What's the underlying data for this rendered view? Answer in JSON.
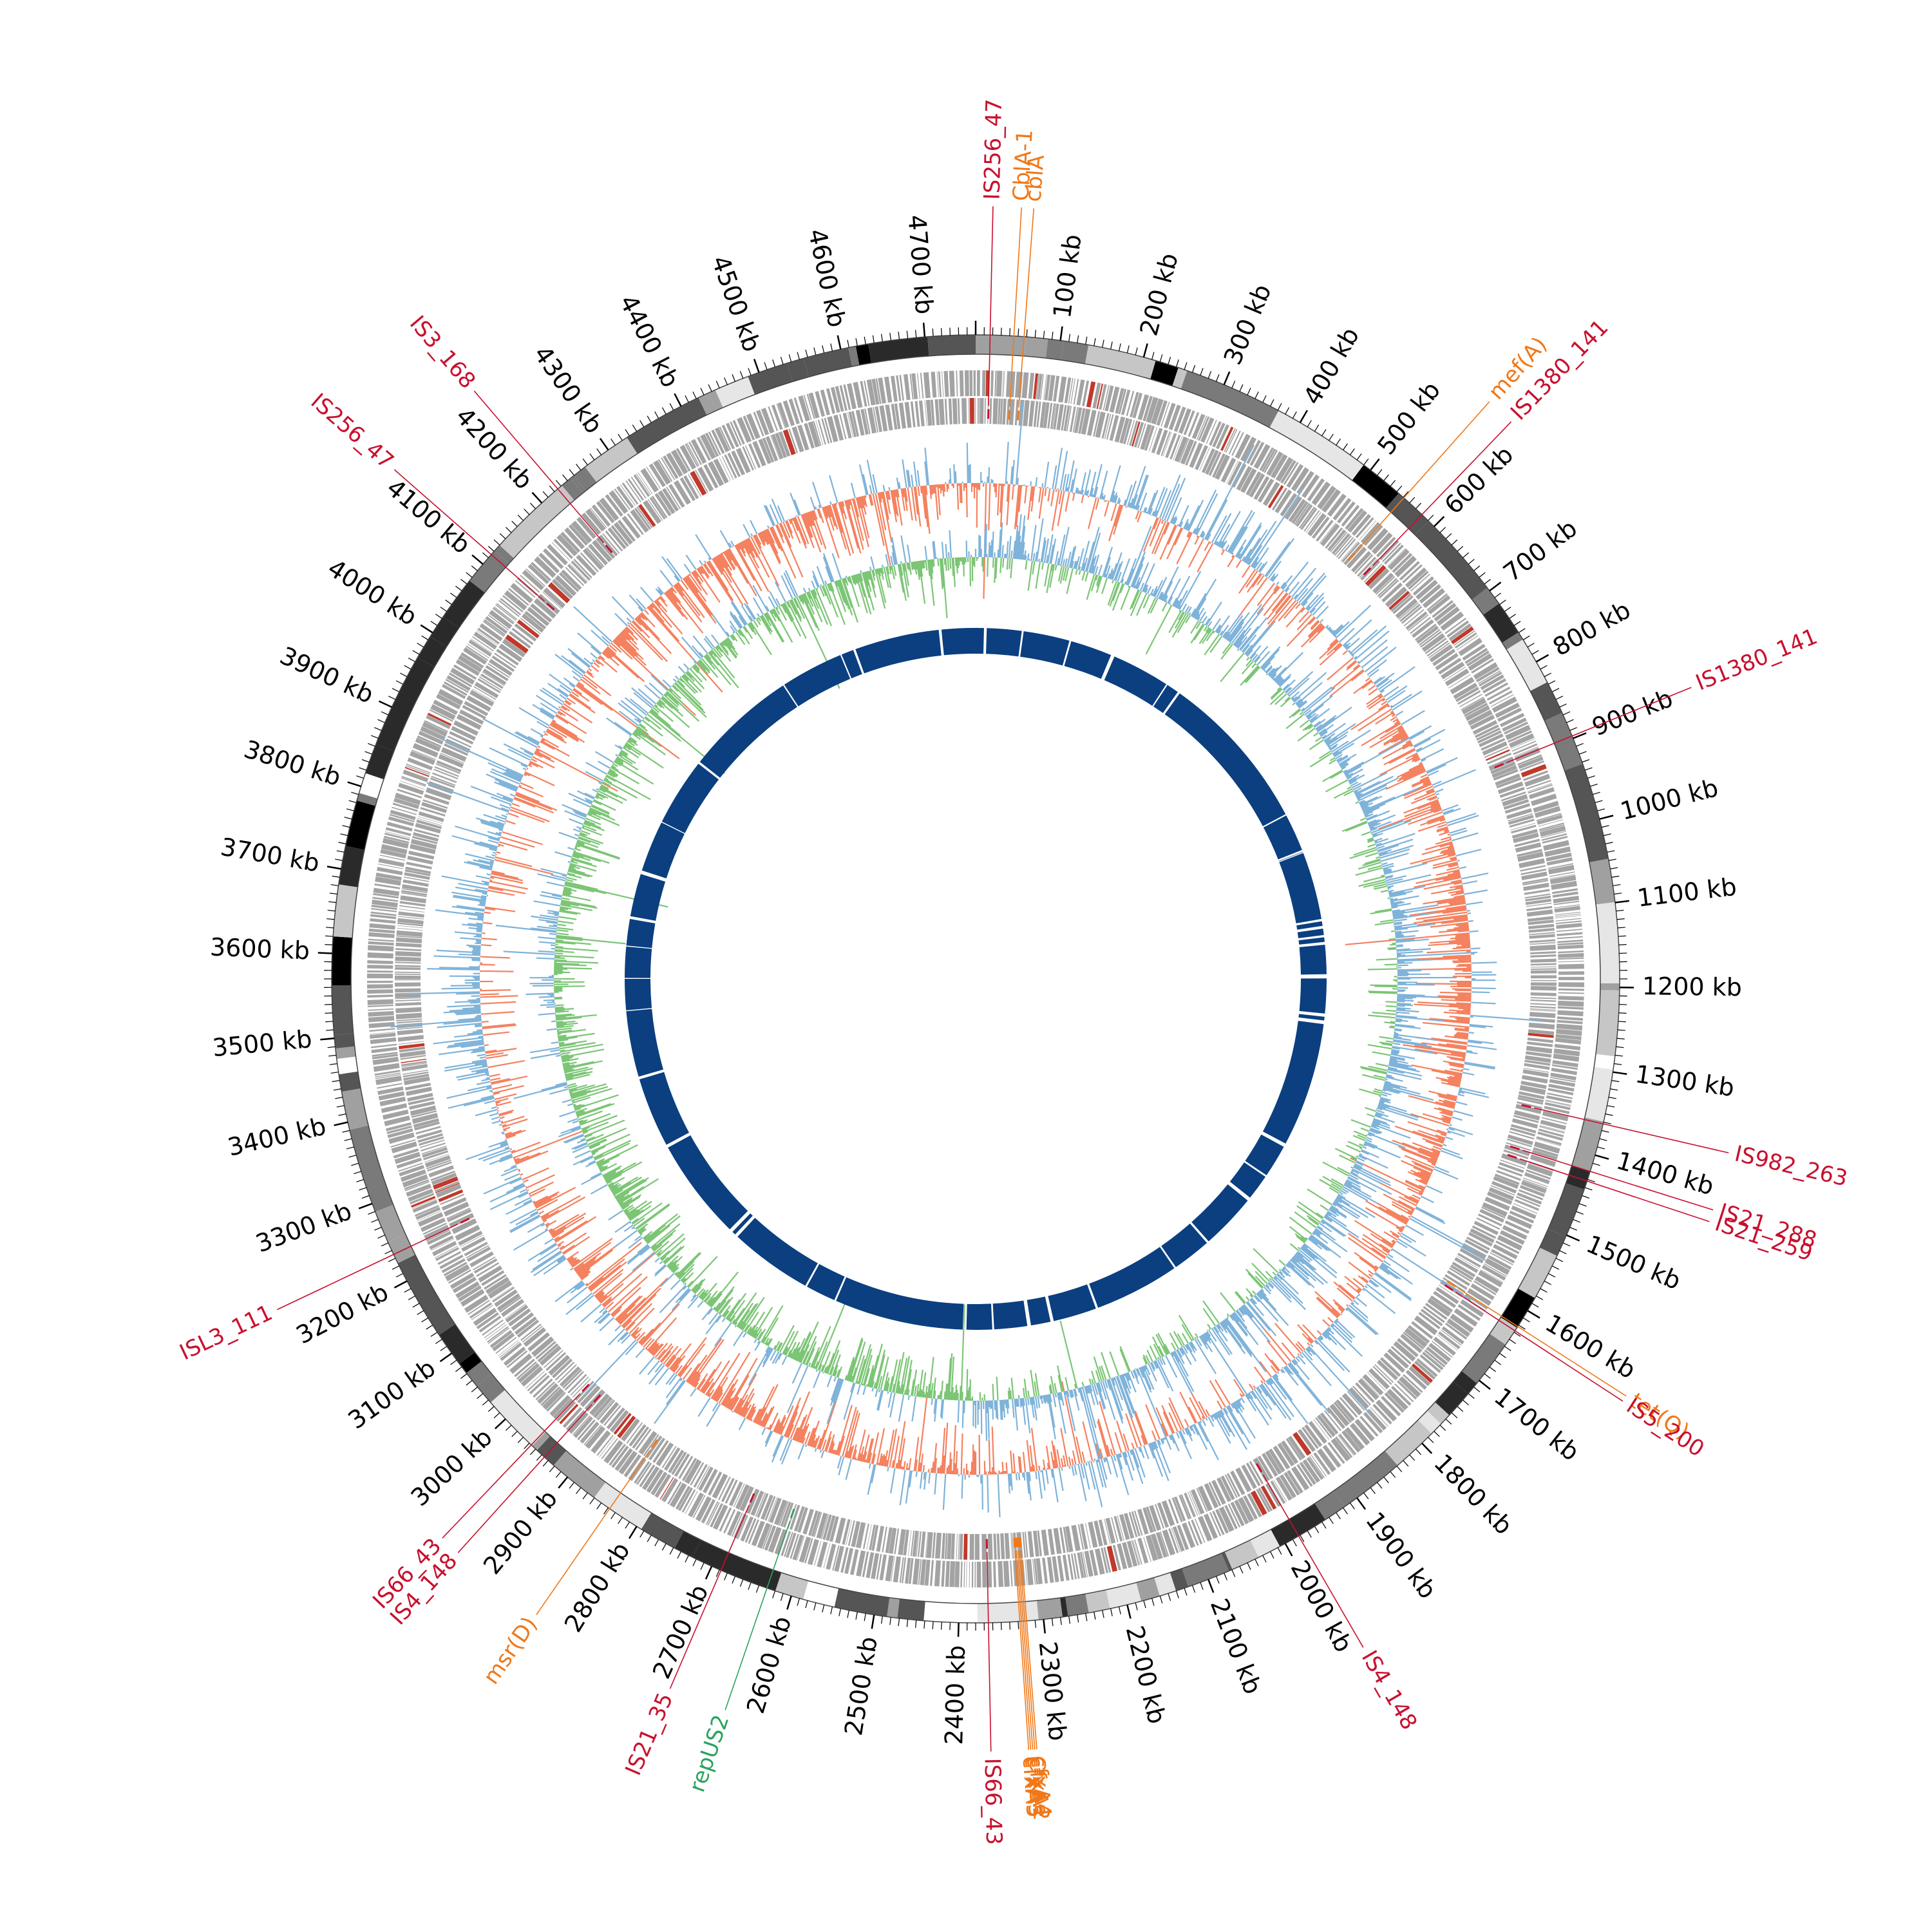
{
  "genome": {
    "length_kb": 4760,
    "tick_labels": [
      "100 kb",
      "200 kb",
      "300 kb",
      "400 kb",
      "500 kb",
      "600 kb",
      "700 kb",
      "800 kb",
      "900 kb",
      "1000 kb",
      "1100 kb",
      "1200 kb",
      "1300 kb",
      "1400 kb",
      "1500 kb",
      "1600 kb",
      "1700 kb",
      "1800 kb",
      "1900 kb",
      "2000 kb",
      "2100 kb",
      "2200 kb",
      "2300 kb",
      "2400 kb",
      "2500 kb",
      "2600 kb",
      "2700 kb",
      "2800 kb",
      "2900 kb",
      "3000 kb",
      "3100 kb",
      "3200 kb",
      "3300 kb",
      "3400 kb",
      "3500 kb",
      "3600 kb",
      "3700 kb",
      "3800 kb",
      "3900 kb",
      "4000 kb",
      "4100 kb",
      "4200 kb",
      "4300 kb",
      "4400 kb",
      "4500 kb",
      "4600 kb",
      "4700 kb"
    ]
  },
  "colors": {
    "is_element": "#c8102e",
    "resistance_gene": "#f07818",
    "plasmid_gene": "#2ca25f",
    "gc_positive": "#7fb3d9",
    "gc_negative": "#f4815f",
    "skew_positive": "#7fb3d9",
    "skew_negative": "#7cc576",
    "cds_grey": "#a3a3a3",
    "blast_ring": "#0b3f80"
  },
  "annotations": [
    {
      "label": "IS256_47",
      "position_kb": 17,
      "kind": "is_element"
    },
    {
      "label": "CblA-1",
      "position_kb": 45,
      "kind": "resistance_gene"
    },
    {
      "label": "cblA",
      "position_kb": 57,
      "kind": "resistance_gene"
    },
    {
      "label": "mef(A)",
      "position_kb": 551,
      "kind": "resistance_gene"
    },
    {
      "label": "IS1380_141",
      "position_kb": 580,
      "kind": "is_element"
    },
    {
      "label": "IS1380_141",
      "position_kb": 897,
      "kind": "is_element"
    },
    {
      "label": "IS982_263",
      "position_kb": 1362,
      "kind": "is_element"
    },
    {
      "label": "IS21_288",
      "position_kb": 1420,
      "kind": "is_element"
    },
    {
      "label": "IS21_259",
      "position_kb": 1432,
      "kind": "is_element"
    },
    {
      "label": "tet(Q)",
      "position_kb": 1622,
      "kind": "resistance_gene"
    },
    {
      "label": "IS5_200",
      "position_kb": 1628,
      "kind": "is_element"
    },
    {
      "label": "IS4_148",
      "position_kb": 1982,
      "kind": "is_element"
    },
    {
      "label": "cfxA4",
      "position_kb": 2320,
      "kind": "resistance_gene"
    },
    {
      "label": "CfxA2",
      "position_kb": 2322,
      "kind": "resistance_gene"
    },
    {
      "label": "cfxA",
      "position_kb": 2324,
      "kind": "resistance_gene"
    },
    {
      "label": "cfxA3",
      "position_kb": 2326,
      "kind": "resistance_gene"
    },
    {
      "label": "cfxA5",
      "position_kb": 2328,
      "kind": "resistance_gene"
    },
    {
      "label": "IS66_43",
      "position_kb": 2365,
      "kind": "is_element"
    },
    {
      "label": "repUS2",
      "position_kb": 2630,
      "kind": "plasmid_gene"
    },
    {
      "label": "IS21_35",
      "position_kb": 2688,
      "kind": "is_element"
    },
    {
      "label": "msr(D)",
      "position_kb": 2838,
      "kind": "resistance_gene"
    },
    {
      "label": "IS4_148",
      "position_kb": 2936,
      "kind": "is_element"
    },
    {
      "label": "IS66_43",
      "position_kb": 2957,
      "kind": "is_element"
    },
    {
      "label": "ISL3_111",
      "position_kb": 3235,
      "kind": "is_element"
    },
    {
      "label": "IS256_47",
      "position_kb": 4115,
      "kind": "is_element"
    },
    {
      "label": "IS3_168",
      "position_kb": 4225,
      "kind": "is_element"
    }
  ],
  "blast_gaps_kb": [
    18,
    100,
    205,
    300,
    435,
    465,
    820,
    905,
    910,
    1060,
    1075,
    1095,
    1110,
    1180,
    1185,
    1265,
    1280,
    1560,
    1640,
    1700,
    1830,
    1920,
    2110,
    2210,
    2260,
    2340,
    2400,
    2690,
    2760,
    2945,
    2960,
    3190,
    3350,
    3500,
    3570,
    3640,
    3700,
    3800,
    3920,
    4070,
    4320,
    4460,
    4490,
    4680
  ]
}
